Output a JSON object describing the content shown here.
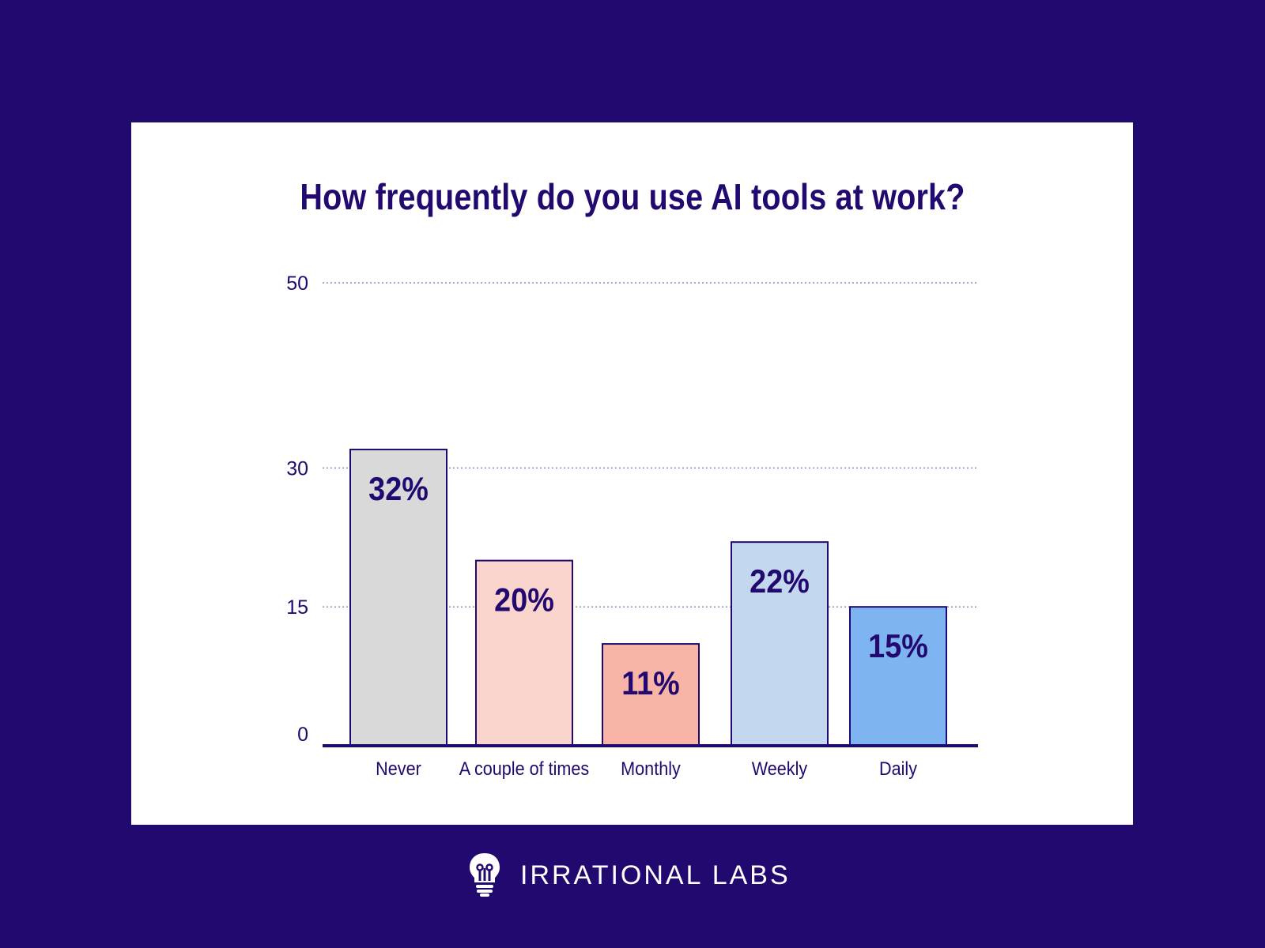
{
  "chart_data": {
    "type": "bar",
    "title": "How frequently do you use AI tools at work?",
    "categories": [
      "Never",
      "A couple of times",
      "Monthly",
      "Weekly",
      "Daily"
    ],
    "values": [
      32,
      20,
      11,
      22,
      15
    ],
    "value_labels": [
      "32%",
      "20%",
      "11%",
      "22%",
      "15%"
    ],
    "colors": [
      "#d9d9d9",
      "#fad5cd",
      "#f8b4a6",
      "#c3d8ef",
      "#7eb4ef"
    ],
    "y_ticks": [
      0,
      15,
      30,
      50
    ],
    "ylim": [
      0,
      50
    ],
    "grid": true,
    "xlabel": "",
    "ylabel": ""
  },
  "footer": {
    "brand": "IRRATIONAL LABS",
    "logo_icon": "head-lightbulb-icon"
  },
  "theme": {
    "background": "#22096f",
    "ink": "#22096f",
    "card": "#ffffff"
  }
}
